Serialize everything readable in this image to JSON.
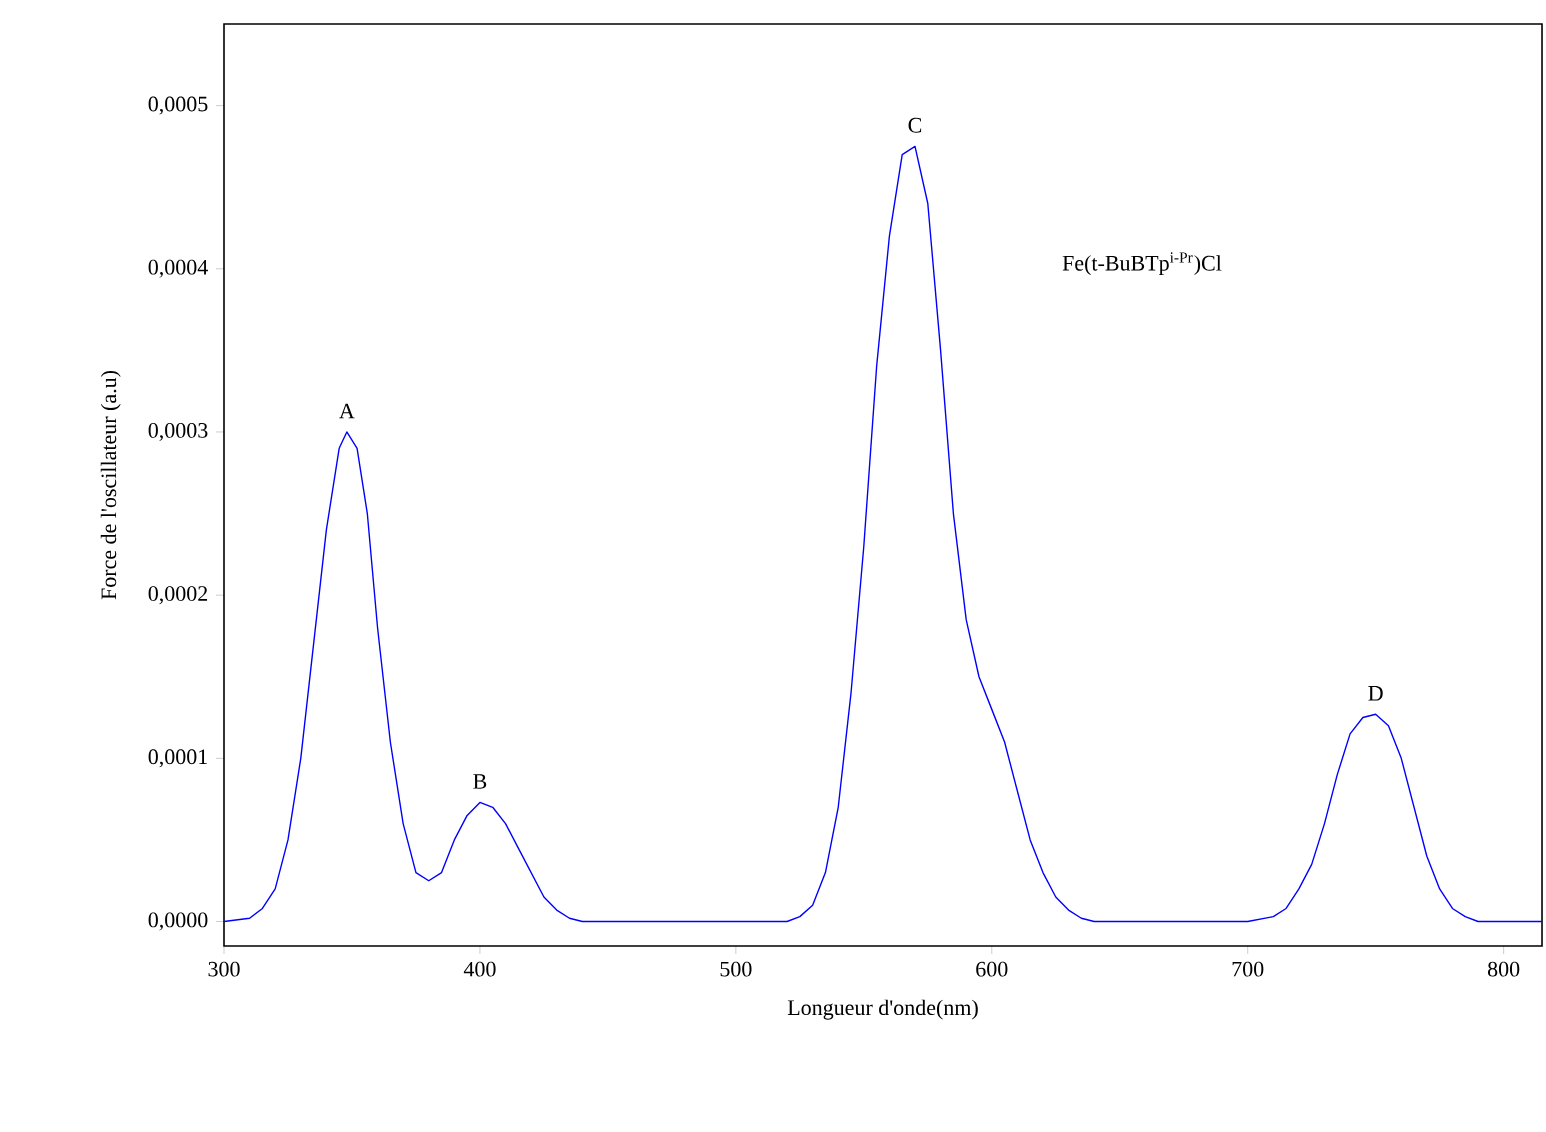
{
  "chart_data": {
    "type": "line",
    "xlabel": "Longueur d'onde(nm)",
    "ylabel": "Force de l'oscillateur (a.u)",
    "xlim": [
      300,
      815
    ],
    "ylim": [
      -1.5e-05,
      0.00055
    ],
    "xticks": [
      300,
      400,
      500,
      600,
      700,
      800
    ],
    "yticks": [
      {
        "value": 0,
        "label": "0,0000"
      },
      {
        "value": 0.0001,
        "label": "0,0001"
      },
      {
        "value": 0.0002,
        "label": "0,0002"
      },
      {
        "value": 0.0003,
        "label": "0,0003"
      },
      {
        "value": 0.0004,
        "label": "0,0004"
      },
      {
        "value": 0.0005,
        "label": "0,0005"
      }
    ],
    "series": [
      {
        "color": "#0000ff",
        "x": [
          300,
          310,
          315,
          320,
          325,
          330,
          335,
          340,
          345,
          348,
          352,
          356,
          360,
          365,
          370,
          375,
          380,
          385,
          390,
          395,
          400,
          405,
          410,
          415,
          420,
          425,
          430,
          435,
          440,
          520,
          525,
          530,
          535,
          540,
          545,
          550,
          555,
          560,
          565,
          570,
          575,
          580,
          585,
          590,
          595,
          600,
          605,
          610,
          615,
          620,
          625,
          630,
          635,
          640,
          700,
          710,
          715,
          720,
          725,
          730,
          735,
          740,
          745,
          750,
          755,
          760,
          765,
          770,
          775,
          780,
          785,
          790,
          815
        ],
        "values": [
          0,
          2e-06,
          8e-06,
          2e-05,
          5e-05,
          0.0001,
          0.00017,
          0.00024,
          0.00029,
          0.0003,
          0.00029,
          0.00025,
          0.00018,
          0.00011,
          6e-05,
          3e-05,
          2.5e-05,
          3e-05,
          5e-05,
          6.5e-05,
          7.3e-05,
          7e-05,
          6e-05,
          4.5e-05,
          3e-05,
          1.5e-05,
          7e-06,
          2e-06,
          0,
          0,
          3e-06,
          1e-05,
          3e-05,
          7e-05,
          0.00014,
          0.00023,
          0.00034,
          0.00042,
          0.00047,
          0.000475,
          0.00044,
          0.00035,
          0.00025,
          0.000185,
          0.00015,
          0.00013,
          0.00011,
          8e-05,
          5e-05,
          3e-05,
          1.5e-05,
          7e-06,
          2e-06,
          0,
          0,
          3e-06,
          8e-06,
          2e-05,
          3.5e-05,
          6e-05,
          9e-05,
          0.000115,
          0.000125,
          0.000127,
          0.00012,
          0.0001,
          7e-05,
          4e-05,
          2e-05,
          8e-06,
          3e-06,
          0,
          0
        ]
      }
    ],
    "annotations": [
      {
        "text": "A",
        "x": 348,
        "y": 0.0003
      },
      {
        "text": "B",
        "x": 400,
        "y": 7.3e-05
      },
      {
        "text": "C",
        "x": 570,
        "y": 0.000475
      },
      {
        "text": "D",
        "x": 750,
        "y": 0.000127
      },
      "Fe(t-BuBTp$^{i-Pr}$)Cl"
    ]
  }
}
